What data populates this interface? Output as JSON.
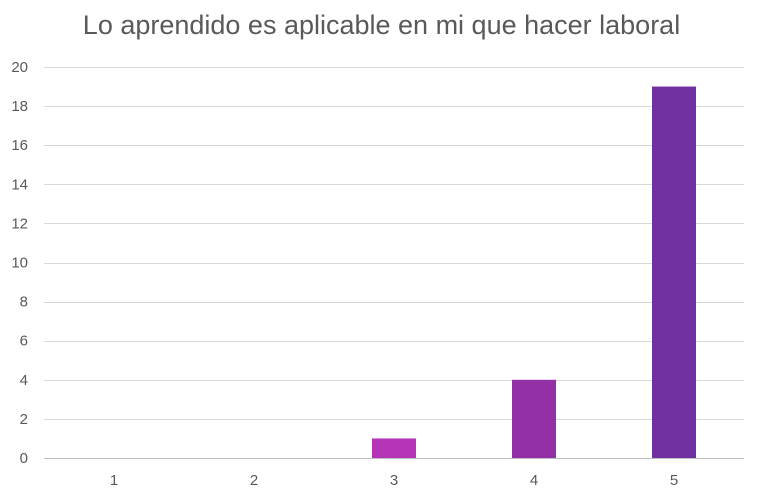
{
  "chart_data": {
    "type": "bar",
    "title": "Lo aprendido es aplicable en mi que hacer laboral",
    "xlabel": "",
    "ylabel": "",
    "categories": [
      "1",
      "2",
      "3",
      "4",
      "5"
    ],
    "values": [
      0,
      0,
      1,
      4,
      19
    ],
    "ylim": [
      0,
      20
    ],
    "yticks": [
      0,
      2,
      4,
      6,
      8,
      10,
      12,
      14,
      16,
      18,
      20
    ],
    "grid": true,
    "legend": "none",
    "colors": [
      "#a43bbf",
      "#a43bbf",
      "#b535b8",
      "#9330a6",
      "#7030a0"
    ]
  }
}
